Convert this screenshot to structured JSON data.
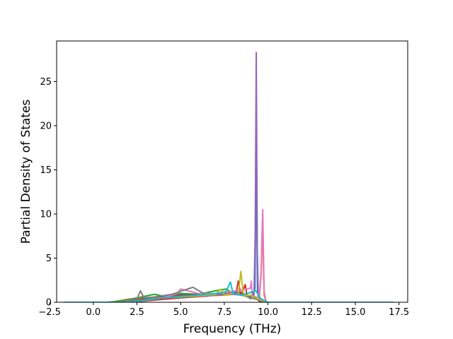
{
  "chart_data": {
    "type": "line",
    "xlabel": "Frequency (THz)",
    "ylabel": "Partial Density of States",
    "xlim": [
      -2.1,
      18.0
    ],
    "ylim": [
      0,
      29.6
    ],
    "xticks": [
      -2.5,
      0.0,
      2.5,
      5.0,
      7.5,
      10.0,
      12.5,
      15.0,
      17.5
    ],
    "xtick_labels": [
      "−2.5",
      "0.0",
      "2.5",
      "5.0",
      "7.5",
      "10.0",
      "12.5",
      "15.0",
      "17.5"
    ],
    "yticks": [
      0,
      5,
      10,
      15,
      20,
      25
    ],
    "ytick_labels": [
      "0",
      "5",
      "10",
      "15",
      "20",
      "25"
    ],
    "grid": false,
    "legend": "none",
    "series": [
      {
        "color": "#1f77b4",
        "x": [
          -1.7,
          0.8,
          2.0,
          3.0,
          4.0,
          5.0,
          6.0,
          7.0,
          7.5,
          8.0,
          8.6,
          9.0,
          9.25,
          9.33,
          9.4,
          9.5,
          9.7,
          10.0,
          12.0,
          17.2
        ],
        "y": [
          0,
          0,
          0.2,
          0.4,
          0.6,
          0.9,
          0.8,
          0.9,
          1.0,
          1.2,
          1.0,
          0.4,
          1.5,
          16.2,
          1.2,
          0.0,
          0.0,
          0.0,
          0,
          0
        ]
      },
      {
        "color": "#ff7f0e",
        "x": [
          -1.7,
          1.0,
          2.0,
          3.0,
          4.5,
          6.0,
          7.5,
          8.5,
          9.2,
          9.5,
          9.6,
          9.68,
          9.78,
          9.9,
          17.2
        ],
        "y": [
          0,
          0,
          0.35,
          0.5,
          0.6,
          0.7,
          0.8,
          1.0,
          0.4,
          0.3,
          3.0,
          9.1,
          0.8,
          0,
          0
        ]
      },
      {
        "color": "#2ca02c",
        "x": [
          -1.7,
          1.0,
          2.0,
          3.5,
          4.0,
          5.0,
          6.0,
          7.0,
          7.6,
          8.0,
          9.3,
          9.6,
          10.0,
          17.2
        ],
        "y": [
          0,
          0,
          0.3,
          0.9,
          0.7,
          1.0,
          0.9,
          1.3,
          1.5,
          1.0,
          0.6,
          0.3,
          0,
          0
        ]
      },
      {
        "color": "#d62728",
        "x": [
          -1.7,
          2.0,
          5.0,
          6.5,
          7.5,
          8.2,
          8.3,
          8.45,
          8.7,
          8.8,
          9.3,
          9.6,
          10.0,
          17.2
        ],
        "y": [
          0,
          0,
          0.5,
          0.7,
          1.0,
          1.3,
          2.4,
          0.8,
          2.0,
          0.7,
          0.5,
          0.3,
          0,
          0
        ]
      },
      {
        "color": "#9467bd",
        "x": [
          -1.7,
          2.0,
          4.0,
          6.0,
          8.0,
          9.0,
          9.2,
          9.27,
          9.33,
          9.39,
          9.45,
          9.6,
          10.0,
          17.2
        ],
        "y": [
          0,
          0,
          0.5,
          0.7,
          0.9,
          0.7,
          0.8,
          8.0,
          28.3,
          6.0,
          0.3,
          0.0,
          0,
          0
        ]
      },
      {
        "color": "#8c564b",
        "x": [
          -1.7,
          2.0,
          3.0,
          5.0,
          7.0,
          8.0,
          9.0,
          9.5,
          10.0,
          17.2
        ],
        "y": [
          0,
          0,
          0.5,
          0.8,
          0.9,
          1.1,
          0.6,
          0.2,
          0,
          0
        ]
      },
      {
        "color": "#e377c2",
        "x": [
          -1.7,
          2.0,
          4.0,
          4.8,
          5.0,
          6.0,
          7.0,
          8.0,
          9.0,
          9.05,
          9.1,
          9.5,
          9.62,
          9.7,
          9.78,
          9.9,
          17.2
        ],
        "y": [
          0,
          0,
          0.5,
          1.0,
          1.5,
          1.0,
          1.0,
          1.2,
          1.6,
          2.4,
          0.5,
          0.5,
          4.0,
          10.5,
          1.2,
          0,
          0
        ]
      },
      {
        "color": "#7f7f7f",
        "x": [
          -1.7,
          1.5,
          2.5,
          2.7,
          2.9,
          3.5,
          4.5,
          5.7,
          6.5,
          7.5,
          8.0,
          8.5,
          9.0,
          9.5,
          10.0,
          17.2
        ],
        "y": [
          0,
          0,
          0.4,
          1.3,
          0.5,
          0.6,
          0.9,
          1.7,
          0.8,
          0.9,
          1.0,
          0.8,
          0.5,
          0.3,
          0,
          0
        ]
      },
      {
        "color": "#bcbd22",
        "x": [
          -1.7,
          2.0,
          4.0,
          6.0,
          7.0,
          7.3,
          7.5,
          8.0,
          8.3,
          8.45,
          8.6,
          9.0,
          9.5,
          10.0,
          17.2
        ],
        "y": [
          0,
          0,
          0.5,
          0.7,
          0.9,
          1.5,
          0.8,
          1.0,
          0.9,
          3.5,
          0.7,
          0.8,
          0.3,
          0,
          0
        ]
      },
      {
        "color": "#17becf",
        "x": [
          -1.7,
          2.0,
          4.0,
          6.0,
          7.0,
          7.6,
          7.85,
          8.0,
          8.5,
          9.3,
          9.6,
          10.0,
          17.2
        ],
        "y": [
          0,
          0,
          0.5,
          0.8,
          1.0,
          1.2,
          2.3,
          1.0,
          0.8,
          1.3,
          0.4,
          0,
          0
        ]
      }
    ]
  }
}
